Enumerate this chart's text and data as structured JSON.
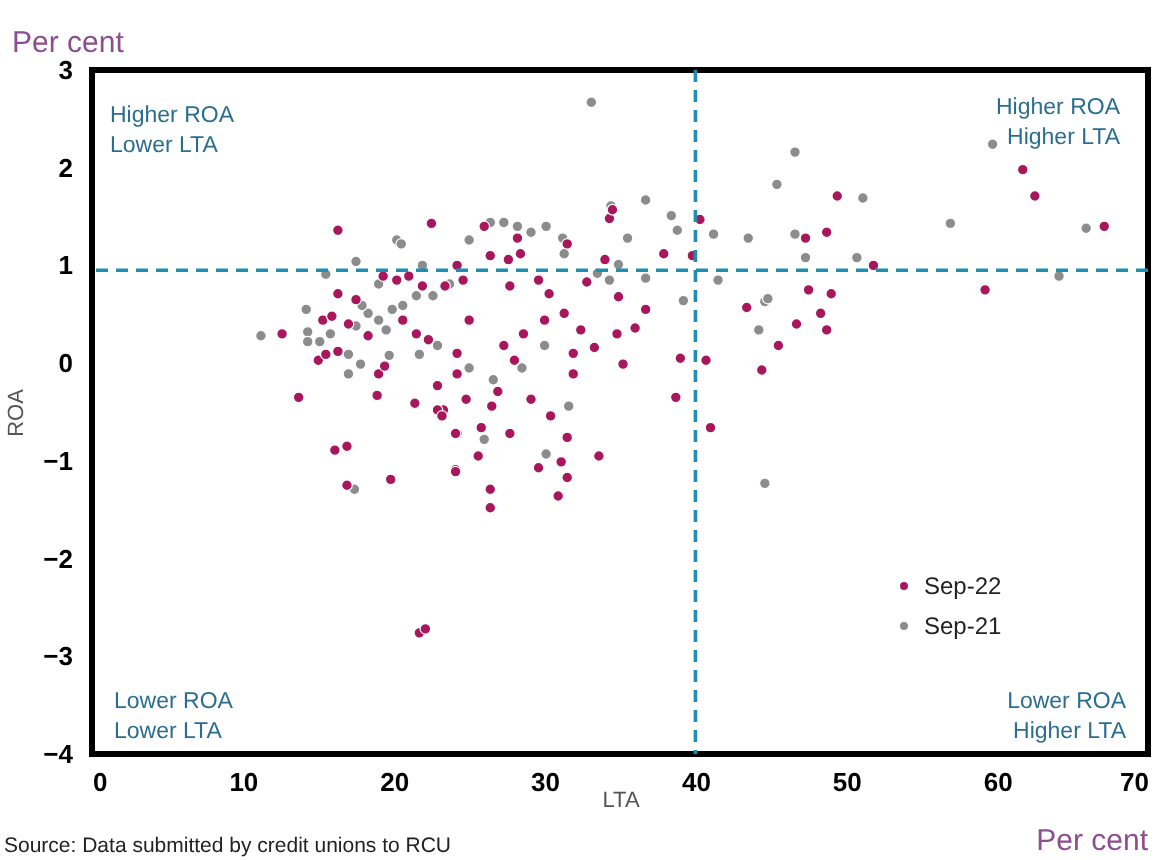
{
  "chart_data": {
    "type": "scatter",
    "xlabel": "LTA",
    "ylabel": "ROA",
    "xlim": [
      0,
      70
    ],
    "xticks": [
      0,
      10,
      20,
      30,
      40,
      50,
      60,
      70
    ],
    "ylim": [
      -4,
      3
    ],
    "yticks": [
      -4,
      -3,
      -2,
      -1,
      0,
      1,
      2,
      3
    ],
    "grid": false,
    "legend": "bottom right",
    "marker": "circle",
    "ref_lines": [
      {
        "axis": "x",
        "value": 40,
        "color": "#1f8fb0",
        "line_style": "dashed"
      },
      {
        "axis": "y",
        "value": 0.95,
        "color": "#1f8fb0",
        "line_style": "dashed"
      }
    ],
    "annotations": [
      "Per cent",
      "Per cent",
      "Source: Data submitted by credit unions to RCU",
      "Higher ROA\nLower LTA",
      "Higher ROA\nHigher LTA",
      "Lower ROA\nLower LTA",
      "Lower ROA\nHigher LTA"
    ],
    "series": [
      {
        "name": "Sep-22",
        "color": "#a8175c",
        "x": [
          49.4,
          47.3,
          48.7,
          40.3,
          39.8,
          51.8,
          61.7,
          62.5,
          67.1,
          59.2,
          47.5,
          49.0,
          43.4,
          48.3,
          46.7,
          48.7,
          45.5,
          44.4,
          40.7,
          41.0,
          26.0,
          28.2,
          31.5,
          34.3,
          34.5,
          37.9,
          34.0,
          32.8,
          34.9,
          36.7,
          36.0,
          34.8,
          33.3,
          35.2,
          39.0,
          38.7,
          31.9,
          30.4,
          31.5,
          33.6,
          31.1,
          29.6,
          31.5,
          30.9,
          29.1,
          27.7,
          25.8,
          26.5,
          26.9,
          24.8,
          24.2,
          24.1,
          25.6,
          26.4,
          26.4,
          28.0,
          31.9,
          30.0,
          28.6,
          27.3,
          24.2,
          23.3,
          25.0,
          24.2,
          27.7,
          29.6,
          30.3,
          28.4,
          27.6,
          26.4,
          24.6,
          31.3,
          32.4,
          16.3,
          22.5,
          12.6,
          13.7,
          16.1,
          16.9,
          16.9,
          19.8,
          15.0,
          15.5,
          16.3,
          19.0,
          19.4,
          18.9,
          21.4,
          22.9,
          23.2,
          22.9,
          24.1,
          24.1,
          16.3,
          17.5,
          17.0,
          15.3,
          15.9,
          18.3,
          19.3,
          20.2,
          21.0,
          21.9,
          20.6,
          21.5,
          22.3,
          23.4,
          24.2,
          21.7,
          22.1
        ],
        "values": [
          1.71,
          1.28,
          1.34,
          1.47,
          1.1,
          1.0,
          1.98,
          1.71,
          1.4,
          0.75,
          0.75,
          0.71,
          0.57,
          0.51,
          0.4,
          0.34,
          0.18,
          -0.07,
          0.03,
          -0.66,
          1.4,
          1.28,
          1.22,
          1.48,
          1.57,
          1.12,
          1.06,
          0.83,
          0.68,
          0.55,
          0.36,
          0.3,
          0.16,
          -0.01,
          0.05,
          -0.35,
          -0.11,
          -0.54,
          -0.76,
          -0.95,
          -1.01,
          -1.07,
          -1.17,
          -1.36,
          -0.37,
          -0.72,
          -0.66,
          -0.44,
          -0.29,
          -0.37,
          -0.72,
          -1.09,
          -0.95,
          -1.29,
          -1.48,
          0.03,
          0.1,
          0.44,
          0.3,
          0.18,
          -0.11,
          -0.48,
          0.44,
          0.1,
          0.79,
          0.85,
          0.71,
          1.12,
          1.06,
          1.1,
          0.85,
          0.51,
          0.34,
          1.36,
          1.43,
          0.3,
          -0.35,
          -0.89,
          -0.85,
          -1.25,
          -1.19,
          0.03,
          0.09,
          0.12,
          -0.11,
          -0.03,
          -0.33,
          -0.41,
          -0.48,
          -0.54,
          -0.23,
          -0.72,
          -1.11,
          0.71,
          0.65,
          0.4,
          0.44,
          0.48,
          0.28,
          0.89,
          0.85,
          0.89,
          0.79,
          0.44,
          0.3,
          0.24,
          0.79,
          1.0,
          -2.76,
          -2.72
        ]
      },
      {
        "name": "Sep-21",
        "color": "#8c8c8c",
        "x": [
          46.6,
          45.4,
          51.1,
          41.2,
          43.5,
          46.6,
          47.3,
          50.7,
          56.9,
          65.9,
          59.7,
          64.1,
          41.5,
          44.6,
          44.8,
          44.2,
          44.6,
          33.1,
          36.7,
          34.4,
          38.4,
          38.8,
          35.5,
          34.9,
          36.7,
          39.2,
          33.5,
          34.3,
          31.6,
          30.1,
          25.0,
          26.4,
          27.3,
          28.2,
          29.1,
          30.1,
          31.2,
          31.3,
          26.0,
          26.6,
          28.5,
          30.0,
          25.0,
          11.2,
          14.2,
          14.3,
          14.3,
          15.1,
          15.8,
          17.0,
          17.8,
          17.0,
          17.5,
          20.2,
          20.5,
          15.5,
          17.4,
          17.5,
          18.3,
          19.0,
          19.5,
          19.9,
          20.6,
          21.5,
          22.6,
          19.7,
          21.7,
          22.9,
          21.9,
          23.7,
          19.0,
          17.9
        ],
        "values": [
          2.16,
          1.83,
          1.69,
          1.32,
          1.28,
          1.32,
          1.08,
          1.08,
          1.43,
          1.38,
          2.24,
          0.89,
          0.85,
          0.63,
          0.66,
          0.34,
          -1.23,
          2.67,
          1.67,
          1.61,
          1.51,
          1.36,
          1.28,
          1.01,
          0.87,
          0.64,
          0.92,
          0.85,
          -0.44,
          -0.93,
          1.26,
          1.44,
          1.44,
          1.4,
          1.34,
          1.4,
          1.28,
          1.12,
          -0.78,
          -0.17,
          -0.05,
          0.18,
          -0.05,
          0.28,
          0.55,
          0.32,
          0.22,
          0.22,
          0.3,
          -0.11,
          -0.01,
          0.09,
          1.04,
          1.26,
          1.22,
          0.91,
          -1.29,
          0.38,
          0.51,
          0.44,
          0.34,
          0.55,
          0.59,
          0.69,
          0.69,
          0.08,
          0.09,
          0.18,
          1.0,
          0.81,
          0.81,
          0.59
        ]
      }
    ]
  }
}
